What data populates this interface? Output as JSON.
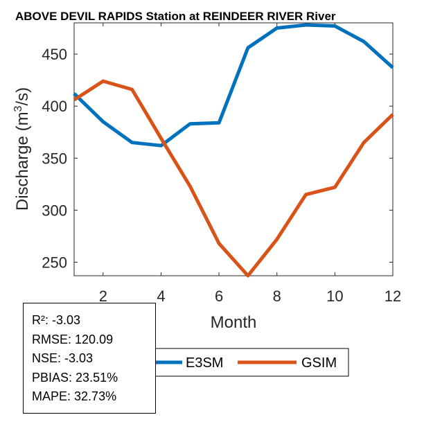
{
  "chart_data": {
    "type": "line",
    "title": "ABOVE DEVIL RAPIDS  Station at  REINDEER RIVER  River",
    "xlabel": "Month",
    "ylabel_main": "Discharge (m",
    "ylabel_sup": "3",
    "ylabel_end": "/s)",
    "xlim": [
      1,
      12
    ],
    "ylim": [
      237,
      480
    ],
    "xticks": [
      2,
      4,
      6,
      8,
      10,
      12
    ],
    "yticks": [
      250,
      300,
      350,
      400,
      450
    ],
    "x": [
      1,
      2,
      3,
      4,
      5,
      6,
      7,
      8,
      9,
      10,
      11,
      12
    ],
    "series": [
      {
        "name": "E3SM",
        "color": "#0072BD",
        "values": [
          412,
          385,
          365,
          362,
          383,
          384,
          456,
          475,
          478,
          477,
          462,
          437
        ]
      },
      {
        "name": "GSIM",
        "color": "#D95319",
        "values": [
          406,
          424,
          416,
          369,
          323,
          268,
          237,
          272,
          315,
          322,
          365,
          392
        ]
      }
    ],
    "legend": "bottom",
    "stats": [
      {
        "label": "R²",
        "value": "-3.03"
      },
      {
        "label": "RMSE",
        "value": "120.09"
      },
      {
        "label": "NSE",
        "value": "-3.03"
      },
      {
        "label": "PBIAS",
        "value": "23.51%"
      },
      {
        "label": "MAPE",
        "value": "32.73%"
      }
    ]
  }
}
